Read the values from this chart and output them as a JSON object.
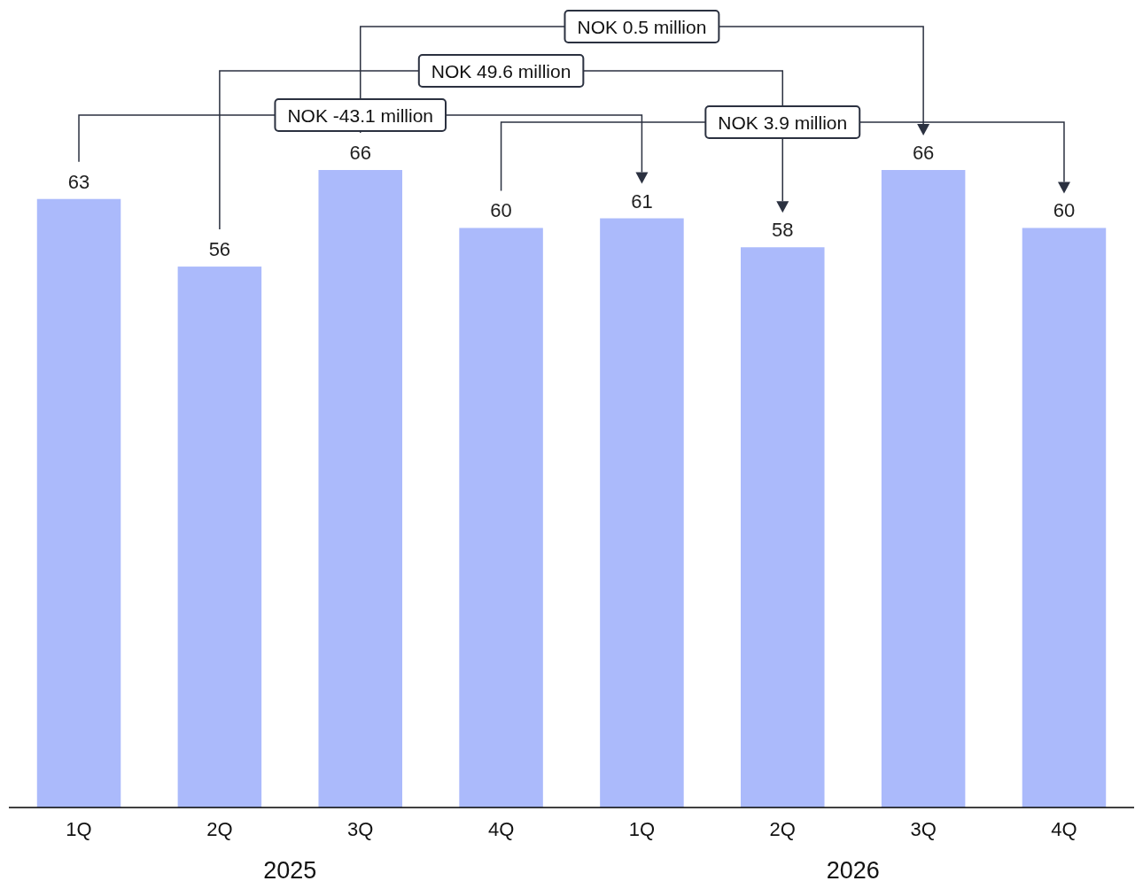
{
  "chart_data": {
    "type": "bar",
    "categories": [
      "1Q",
      "2Q",
      "3Q",
      "4Q",
      "1Q",
      "2Q",
      "3Q",
      "4Q"
    ],
    "values": [
      63,
      56,
      66,
      60,
      61,
      58,
      66,
      60
    ],
    "color": "#abbafb",
    "data_labels": true,
    "annotations": [
      "NOK -43.1 million",
      "NOK 49.6 million",
      "NOK 0.5 million",
      "NOK 3.9 million",
      "2025",
      "2026"
    ]
  }
}
